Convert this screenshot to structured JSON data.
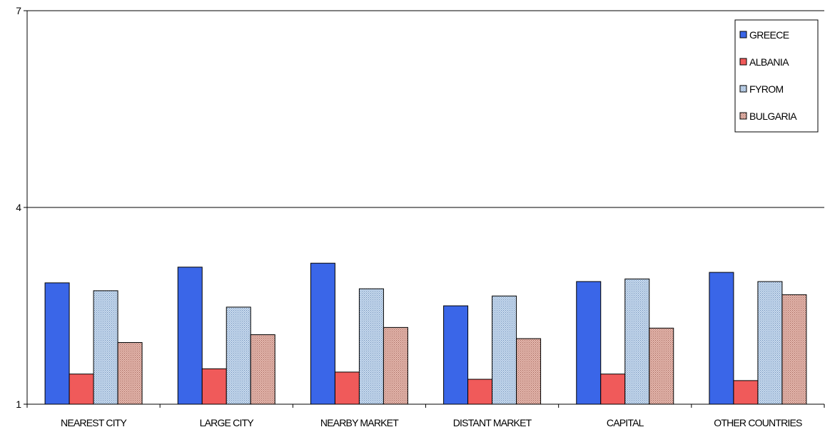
{
  "chart_data": {
    "type": "bar",
    "categories": [
      "NEAREST CITY",
      "LARGE CITY",
      "NEARBY MARKET",
      "DISTANT MARKET",
      "CAPITAL",
      "OTHER COUNTRIES"
    ],
    "series": [
      {
        "name": "GREECE",
        "color": "#3a66e8",
        "pattern": "solid",
        "values": [
          2.85,
          3.09,
          3.15,
          2.5,
          2.87,
          3.01
        ]
      },
      {
        "name": "ALBANIA",
        "color": "#f05a5a",
        "pattern": "solid",
        "values": [
          1.46,
          1.54,
          1.49,
          1.38,
          1.46,
          1.36
        ]
      },
      {
        "name": "FYROM",
        "color": "#a9c7e8",
        "pattern": "dotted",
        "values": [
          2.73,
          2.48,
          2.76,
          2.65,
          2.91,
          2.87
        ]
      },
      {
        "name": "BULGARIA",
        "color": "#d9a39a",
        "pattern": "dotted",
        "values": [
          1.94,
          2.06,
          2.17,
          2.0,
          2.16,
          2.67
        ]
      }
    ],
    "yticks": [
      1,
      4,
      7
    ],
    "ylim": [
      1,
      7
    ],
    "grid": true,
    "legend": "top-right",
    "title": "",
    "xlabel": "",
    "ylabel": ""
  }
}
